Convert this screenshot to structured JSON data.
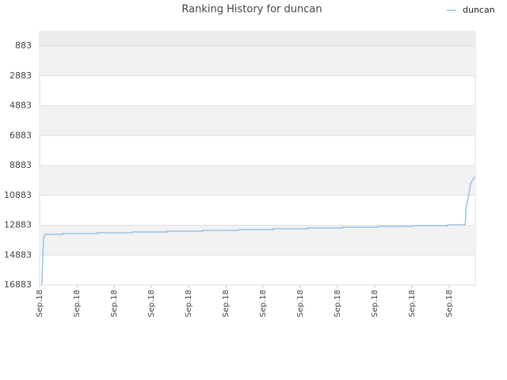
{
  "chart_data": {
    "type": "line",
    "title": "Ranking History for duncan",
    "x": [
      0.06,
      0.09,
      0.11,
      0.15,
      0.62,
      0.62,
      1.55,
      1.55,
      2.49,
      2.49,
      3.43,
      3.43,
      4.38,
      4.38,
      5.32,
      5.32,
      6.26,
      6.26,
      7.19,
      7.19,
      8.13,
      8.13,
      9.09,
      9.09,
      10.02,
      10.02,
      10.96,
      10.96,
      11.43,
      11.45,
      11.53,
      11.57,
      11.64,
      11.7
    ],
    "series": [
      {
        "name": "duncan",
        "color": "#99c2ea",
        "values": [
          16883,
          14657,
          13703,
          13491,
          13491,
          13438,
          13438,
          13385,
          13385,
          13332,
          13332,
          13279,
          13279,
          13226,
          13226,
          13173,
          13173,
          13120,
          13120,
          13067,
          13067,
          13014,
          13014,
          12961,
          12961,
          12908,
          12908,
          12855,
          12855,
          11689,
          10788,
          10099,
          9781,
          9622
        ]
      }
    ],
    "xlim": [
      0,
      11.7
    ],
    "xticks": [
      {
        "value": 0,
        "label": "Sep.18"
      },
      {
        "value": 1,
        "label": "Sep.18"
      },
      {
        "value": 2,
        "label": "Sep.18"
      },
      {
        "value": 3,
        "label": "Sep.18"
      },
      {
        "value": 4,
        "label": "Sep.18"
      },
      {
        "value": 5,
        "label": "Sep.18"
      },
      {
        "value": 6,
        "label": "Sep.18"
      },
      {
        "value": 7,
        "label": "Sep.18"
      },
      {
        "value": 8,
        "label": "Sep.18"
      },
      {
        "value": 9,
        "label": "Sep.18"
      },
      {
        "value": 10,
        "label": "Sep.18"
      },
      {
        "value": 11,
        "label": "Sep.18"
      }
    ],
    "ylim": [
      16883,
      -71
    ],
    "yticks": [
      883,
      2883,
      4883,
      6883,
      8883,
      10883,
      12883,
      14883,
      16883
    ],
    "grid": true,
    "legend": "top-right"
  }
}
